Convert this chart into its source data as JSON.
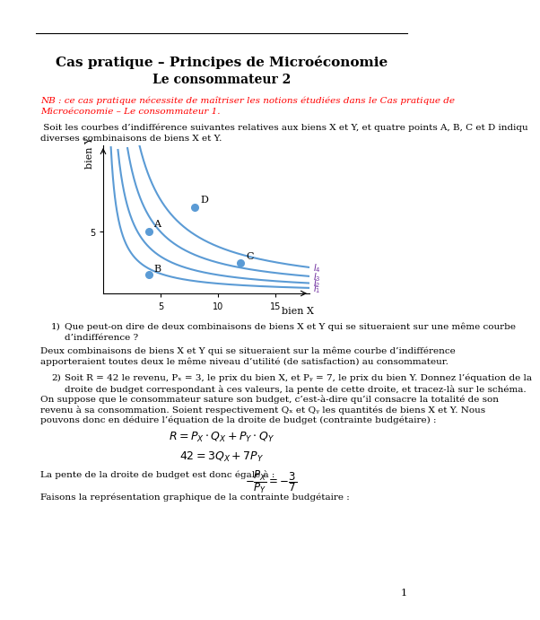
{
  "title": "Cas pratique – Principes de Microéconomie",
  "subtitle": "Le consommateur 2",
  "nb_line1": "NB : ce cas pratique nécessite de maîtriser les notions étudiées dans le Cas pratique de",
  "nb_line2": "Microéconomie – Le consommateur 1.",
  "intro_line1": " Soit les courbes d’indifférence suivantes relatives aux biens X et Y, et quatre points A, B, C et D indiqu",
  "intro_line2": "diverses combinaisons de biens X et Y.",
  "q1_label": "1)",
  "q1_line1": "Que peut-on dire de deux combinaisons de biens X et Y qui se situeraient sur une même courbe",
  "q1_line2": "d’indifférence ?",
  "a1_line1": "Deux combinaisons de biens X et Y qui se situeraient sur la même courbe d’indifférence",
  "a1_line2": "apporteraient toutes deux le même niveau d’utilité (de satisfaction) au consommateur.",
  "q2_label": "2)",
  "q2_line1": "Soit R = 42 le revenu, Pₓ = 3, le prix du bien X, et Pᵧ = 7, le prix du bien Y. Donnez l’équation de la",
  "q2_line2": "droite de budget correspondant à ces valeurs, la pente de cette droite, et tracez-là sur le schéma.",
  "a2_line1": "On suppose que le consommateur sature son budget, c’est-à-dire qu’il consacre la totalité de son",
  "a2_line2": "revenu à sa consommation. Soient respectivement Qₓ et Qᵧ les quantités de biens X et Y. Nous",
  "a2_line3": "pouvons donc en déduire l’équation de la droite de budget (contrainte budgétaire) :",
  "slope_line": "La pente de la droite de budget est donc égale à :",
  "final_line": "Faisons la représentation graphique de la contrainte budgétaire :",
  "page_num": "1",
  "curve_color": "#5b9bd5",
  "point_color": "#5b9bd5",
  "label_color": "#7030a0",
  "background": "#ffffff",
  "red_color": "#ff0000",
  "ks": [
    8,
    15,
    25,
    38
  ],
  "curve_labels": [
    "$I_1$",
    "$I_2$",
    "$I_3$",
    "$I_4$"
  ],
  "points": {
    "A": [
      4.0,
      5.0
    ],
    "B": [
      4.0,
      1.5
    ],
    "C": [
      12.0,
      2.5
    ],
    "D": [
      8.0,
      7.0
    ]
  },
  "xticks": [
    5,
    10,
    15
  ],
  "yticks": [
    5
  ],
  "xlim": [
    0,
    18
  ],
  "ylim": [
    0,
    12
  ]
}
